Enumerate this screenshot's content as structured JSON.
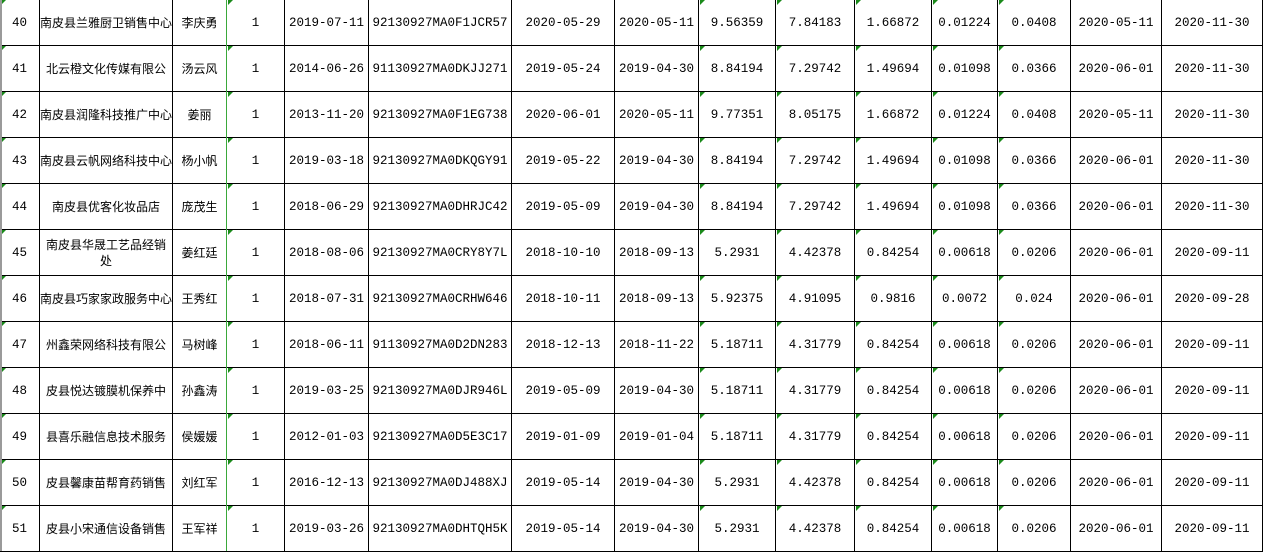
{
  "accent_colors": {
    "grid_line": "#000000",
    "error_marker": "#1a8a1a",
    "selection_line": "#3aa83a"
  },
  "rows": [
    [
      "40",
      "南皮县兰雅厨卫销售中心",
      "李庆勇",
      "1",
      "2019-07-11",
      "92130927MA0F1JCR57",
      "2020-05-29",
      "2020-05-11",
      "9.56359",
      "7.84183",
      "1.66872",
      "0.01224",
      "0.0408",
      "2020-05-11",
      "2020-11-30"
    ],
    [
      "41",
      "北云橙文化传媒有限公",
      "汤云风",
      "1",
      "2014-06-26",
      "91130927MA0DKJJ271",
      "2019-05-24",
      "2019-04-30",
      "8.84194",
      "7.29742",
      "1.49694",
      "0.01098",
      "0.0366",
      "2020-06-01",
      "2020-11-30"
    ],
    [
      "42",
      "南皮县润隆科技推广中心",
      "姜丽",
      "1",
      "2013-11-20",
      "92130927MA0F1EG738",
      "2020-06-01",
      "2020-05-11",
      "9.77351",
      "8.05175",
      "1.66872",
      "0.01224",
      "0.0408",
      "2020-05-11",
      "2020-11-30"
    ],
    [
      "43",
      "南皮县云帆网络科技中心",
      "杨小帆",
      "1",
      "2019-03-18",
      "92130927MA0DKQGY91",
      "2019-05-22",
      "2019-04-30",
      "8.84194",
      "7.29742",
      "1.49694",
      "0.01098",
      "0.0366",
      "2020-06-01",
      "2020-11-30"
    ],
    [
      "44",
      "南皮县优客化妆品店",
      "庞茂生",
      "1",
      "2018-06-29",
      "92130927MA0DHRJC42",
      "2019-05-09",
      "2019-04-30",
      "8.84194",
      "7.29742",
      "1.49694",
      "0.01098",
      "0.0366",
      "2020-06-01",
      "2020-11-30"
    ],
    [
      "45",
      "南皮县华晟工艺品经销处",
      "姜红廷",
      "1",
      "2018-08-06",
      "92130927MA0CRY8Y7L",
      "2018-10-10",
      "2018-09-13",
      "5.2931",
      "4.42378",
      "0.84254",
      "0.00618",
      "0.0206",
      "2020-06-01",
      "2020-09-11"
    ],
    [
      "46",
      "南皮县巧家家政服务中心",
      "王秀红",
      "1",
      "2018-07-31",
      "92130927MA0CRHW646",
      "2018-10-11",
      "2018-09-13",
      "5.92375",
      "4.91095",
      "0.9816",
      "0.0072",
      "0.024",
      "2020-06-01",
      "2020-09-28"
    ],
    [
      "47",
      "州鑫荣网络科技有限公",
      "马树峰",
      "1",
      "2018-06-11",
      "91130927MA0D2DN283",
      "2018-12-13",
      "2018-11-22",
      "5.18711",
      "4.31779",
      "0.84254",
      "0.00618",
      "0.0206",
      "2020-06-01",
      "2020-09-11"
    ],
    [
      "48",
      "皮县悦达镀膜机保养中",
      "孙鑫涛",
      "1",
      "2019-03-25",
      "92130927MA0DJR946L",
      "2019-05-09",
      "2019-04-30",
      "5.18711",
      "4.31779",
      "0.84254",
      "0.00618",
      "0.0206",
      "2020-06-01",
      "2020-09-11"
    ],
    [
      "49",
      "县喜乐融信息技术服务",
      "侯媛媛",
      "1",
      "2012-01-03",
      "92130927MA0D5E3C17",
      "2019-01-09",
      "2019-01-04",
      "5.18711",
      "4.31779",
      "0.84254",
      "0.00618",
      "0.0206",
      "2020-06-01",
      "2020-09-11"
    ],
    [
      "50",
      "皮县馨康苗帮育药销售",
      "刘红军",
      "1",
      "2016-12-13",
      "92130927MA0DJ488XJ",
      "2019-05-14",
      "2019-04-30",
      "5.2931",
      "4.42378",
      "0.84254",
      "0.00618",
      "0.0206",
      "2020-06-01",
      "2020-09-11"
    ],
    [
      "51",
      "皮县小宋通信设备销售",
      "王军祥",
      "1",
      "2019-03-26",
      "92130927MA0DHTQH5K",
      "2019-05-14",
      "2019-04-30",
      "5.2931",
      "4.42378",
      "0.84254",
      "0.00618",
      "0.0206",
      "2020-06-01",
      "2020-09-11"
    ]
  ]
}
